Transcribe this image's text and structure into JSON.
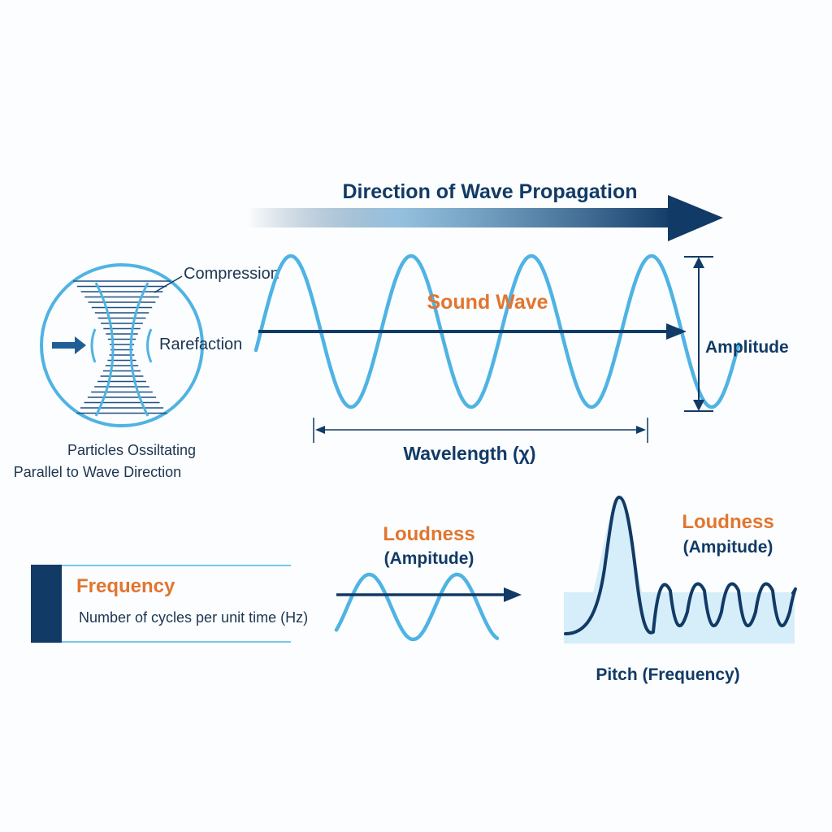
{
  "propagation": {
    "label": "Direction of Wave Propagation"
  },
  "particles": {
    "compression_label": "Compression",
    "rarefaction_label": "Rarefaction",
    "caption_line1": "Particles Ossiltating",
    "caption_line2": "Parallel to Wave Direction"
  },
  "main_wave": {
    "title": "Sound Wave",
    "amplitude_label": "Amplitude",
    "wavelength_label": "Wavelength (χ)"
  },
  "frequency_card": {
    "title": "Frequency",
    "description": "Number of cycles per unit time (Hz)"
  },
  "small_wave": {
    "title_line1": "Loudness",
    "title_line2": "(Ampitude)"
  },
  "pitch_plot": {
    "title_line1": "Loudness",
    "title_line2": "(Ampitude)",
    "caption": "Pitch (Frequency)"
  },
  "colors": {
    "navy": "#123a66",
    "wave_blue": "#4fb3e3",
    "orange": "#e2752f",
    "light_fill": "#d6eef9"
  }
}
